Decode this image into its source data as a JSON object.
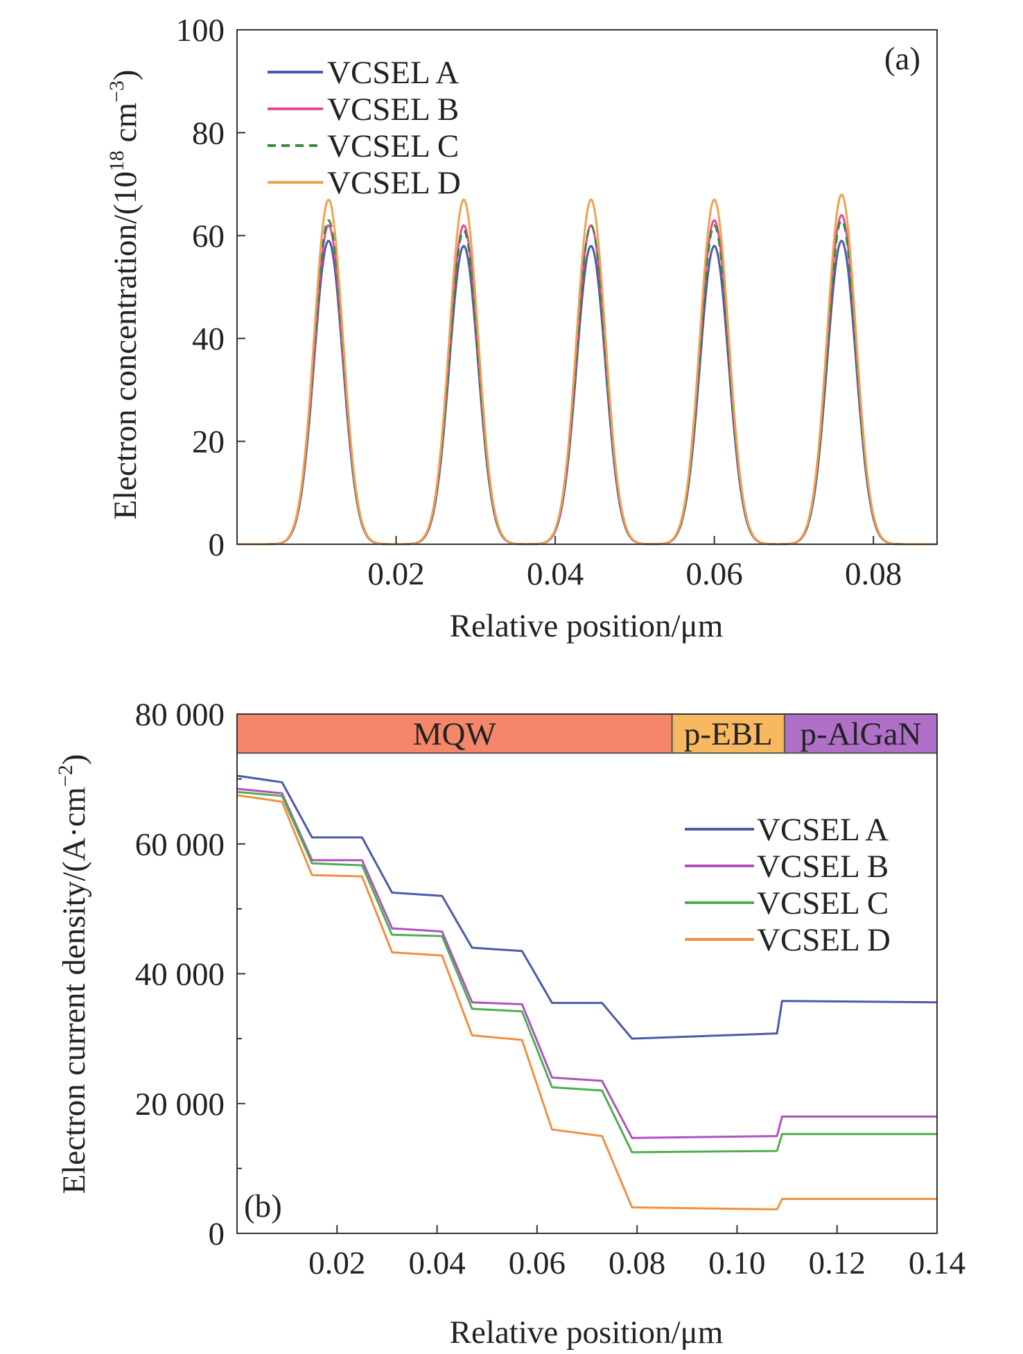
{
  "chart_data": [
    {
      "type": "line",
      "panel_label": "(a)",
      "xlabel": "Relative position/μm",
      "ylabel": "Electron concentration/(10",
      "ylabel_sup1": "18",
      "ylabel_mid": " cm",
      "ylabel_sup2": "−3",
      "ylabel_end": ")",
      "xlim": [
        0.0,
        0.088
      ],
      "ylim": [
        0,
        100
      ],
      "xticks": [
        0.02,
        0.04,
        0.06,
        0.08
      ],
      "xtick_labels": [
        "0.02",
        "0.04",
        "0.06",
        "0.08"
      ],
      "yticks": [
        0,
        20,
        40,
        60,
        80,
        100
      ],
      "ytick_labels": [
        "0",
        "20",
        "40",
        "60",
        "80",
        "100"
      ],
      "legend_position": "top-left",
      "peak_centers": [
        0.0115,
        0.0285,
        0.0445,
        0.06,
        0.076
      ],
      "peak_sigma": 0.0018,
      "series": [
        {
          "name": "VCSEL A",
          "color": "#4a5aa8",
          "dash": "",
          "peaks": [
            59,
            58,
            58,
            58,
            59
          ]
        },
        {
          "name": "VCSEL B",
          "color": "#e8489a",
          "dash": "",
          "peaks": [
            62,
            62,
            62,
            63,
            64
          ]
        },
        {
          "name": "VCSEL C",
          "color": "#3a8a3a",
          "dash": "12,8",
          "peaks": [
            63,
            61,
            62,
            62,
            63
          ]
        },
        {
          "name": "VCSEL D",
          "color": "#f0a050",
          "dash": "",
          "peaks": [
            67,
            67,
            67,
            67,
            68
          ]
        }
      ]
    },
    {
      "type": "line",
      "panel_label": "(b)",
      "xlabel": "Relative position/μm",
      "ylabel": "Electron current density/(A·cm",
      "ylabel_sup": "−2",
      "ylabel_end": ")",
      "xlim": [
        0.0,
        0.14
      ],
      "ylim": [
        0,
        80000
      ],
      "xticks": [
        0.02,
        0.04,
        0.06,
        0.08,
        0.1,
        0.12,
        0.14
      ],
      "xtick_labels": [
        "0.02",
        "0.04",
        "0.06",
        "0.08",
        "0.10",
        "0.12",
        "0.14"
      ],
      "yticks": [
        0,
        20000,
        40000,
        60000,
        80000
      ],
      "ytick_labels": [
        "0",
        "20 000",
        "40 000",
        "60 000",
        "80 000"
      ],
      "legend_position": "right",
      "regions": [
        {
          "label": "MQW",
          "x0": 0.0,
          "x1": 0.087,
          "color": "#f4876a"
        },
        {
          "label": "p-EBL",
          "x0": 0.087,
          "x1": 0.1095,
          "color": "#f8b860"
        },
        {
          "label": "p-AlGaN",
          "x0": 0.1095,
          "x1": 0.14,
          "color": "#b070c8"
        }
      ],
      "region_band_y": [
        74000,
        80000
      ],
      "series": [
        {
          "name": "VCSEL A",
          "color": "#4a5aa8",
          "x": [
            0.0,
            0.009,
            0.015,
            0.025,
            0.031,
            0.041,
            0.047,
            0.057,
            0.063,
            0.073,
            0.079,
            0.108,
            0.109,
            0.14
          ],
          "y": [
            70500,
            69500,
            61000,
            61000,
            52500,
            52000,
            44000,
            43500,
            35500,
            35500,
            30000,
            30800,
            35800,
            35600
          ]
        },
        {
          "name": "VCSEL B",
          "color": "#b050c0",
          "x": [
            0.0,
            0.009,
            0.015,
            0.025,
            0.031,
            0.041,
            0.047,
            0.057,
            0.063,
            0.073,
            0.079,
            0.108,
            0.109,
            0.14
          ],
          "y": [
            68500,
            67800,
            57500,
            57500,
            47000,
            46500,
            35600,
            35300,
            24000,
            23500,
            14700,
            15000,
            18000,
            18000
          ]
        },
        {
          "name": "VCSEL C",
          "color": "#4caf50",
          "x": [
            0.0,
            0.009,
            0.015,
            0.025,
            0.031,
            0.041,
            0.047,
            0.057,
            0.063,
            0.073,
            0.079,
            0.108,
            0.109,
            0.14
          ],
          "y": [
            68000,
            67400,
            57000,
            56700,
            46000,
            45800,
            34600,
            34200,
            22500,
            22000,
            12500,
            12700,
            15300,
            15300
          ]
        },
        {
          "name": "VCSEL D",
          "color": "#f09040",
          "x": [
            0.0,
            0.009,
            0.015,
            0.025,
            0.031,
            0.041,
            0.047,
            0.057,
            0.063,
            0.073,
            0.079,
            0.108,
            0.109,
            0.14
          ],
          "y": [
            67500,
            66500,
            55200,
            55000,
            43300,
            42800,
            30500,
            29800,
            16000,
            15000,
            4000,
            3700,
            5300,
            5300
          ]
        }
      ]
    }
  ]
}
